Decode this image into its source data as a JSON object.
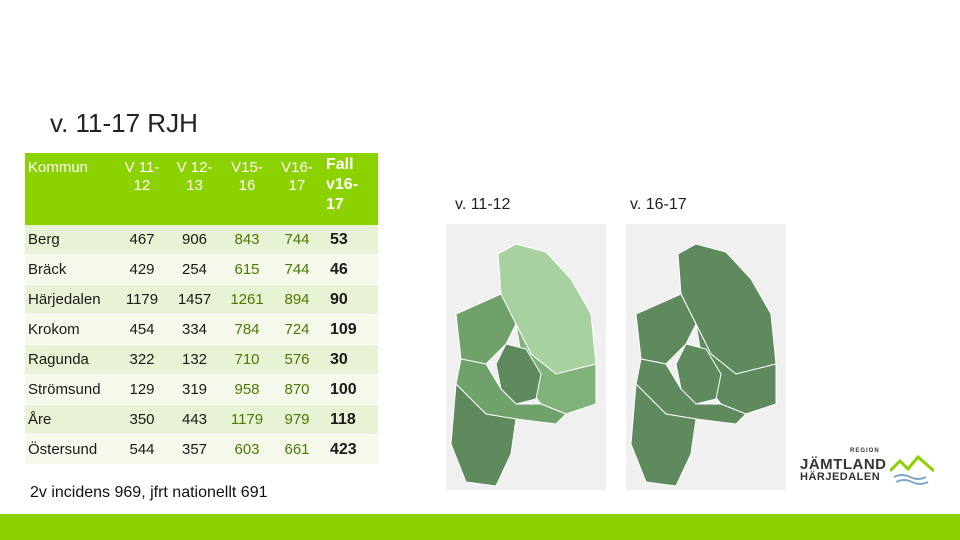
{
  "title": "v. 11-17 RJH",
  "table": {
    "headers": [
      "Kommun",
      "V 11-\n12",
      "V 12-\n13",
      "V15-\n16",
      "V16-\n17",
      "Fall\nv16-\n17"
    ],
    "rows": [
      [
        "Berg",
        "467",
        "906",
        "843",
        "744",
        "53"
      ],
      [
        "Bräck",
        "429",
        "254",
        "615",
        "744",
        "46"
      ],
      [
        "Härjedalen",
        "1179",
        "1457",
        "1261",
        "894",
        "90"
      ],
      [
        "Krokom",
        "454",
        "334",
        "784",
        "724",
        "109"
      ],
      [
        "Ragunda",
        "322",
        "132",
        "710",
        "576",
        "30"
      ],
      [
        "Strömsund",
        "129",
        "319",
        "958",
        "870",
        "100"
      ],
      [
        "Åre",
        "350",
        "443",
        "1179",
        "979",
        "118"
      ],
      [
        "Östersund",
        "544",
        "357",
        "603",
        "661",
        "423"
      ]
    ]
  },
  "footnote": "2v incidens 969, jfrt nationellt 691",
  "maps": {
    "left_label": "v. 11-12",
    "right_label": "v. 16-17"
  },
  "logo": {
    "region": "REGION",
    "line1": "JÄMTLAND",
    "line2": "HÄRJEDALEN"
  },
  "colors": {
    "accent_green": "#8cd100",
    "map_dark": "#5e8a5e",
    "map_mid": "#6fa16b",
    "map_light": "#a7d2a0"
  }
}
